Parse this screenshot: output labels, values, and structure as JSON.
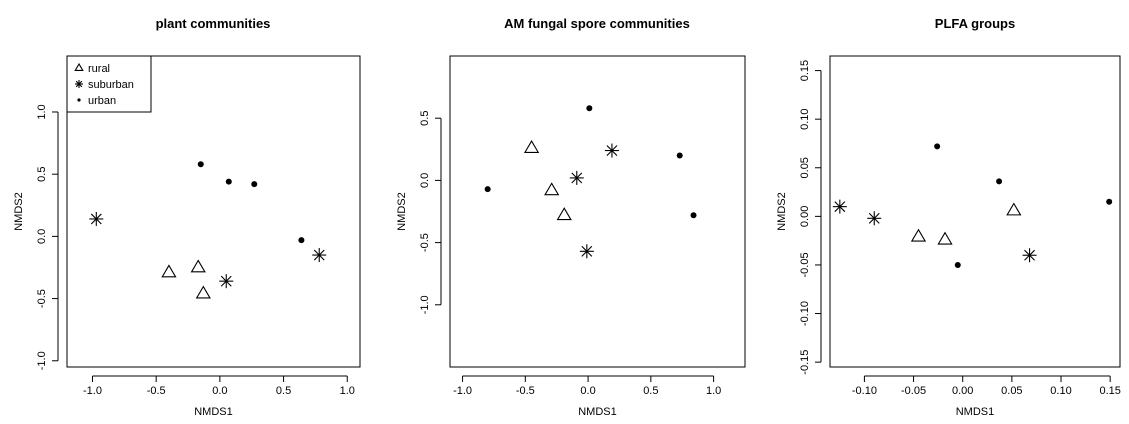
{
  "chart_data": [
    {
      "type": "scatter",
      "title": "plant communities",
      "xlabel": "NMDS1",
      "ylabel": "NMDS2",
      "xlim": [
        -1.2,
        1.1
      ],
      "ylim": [
        -1.05,
        1.45
      ],
      "xticks": [
        -1.0,
        -0.5,
        0.0,
        0.5,
        1.0
      ],
      "xtick_labels": [
        "-1.0",
        "-0.5",
        "0.0",
        "0.5",
        "1.0"
      ],
      "yticks": [
        -1.0,
        -0.5,
        0.0,
        0.5,
        1.0
      ],
      "ytick_labels": [
        "-1.0",
        "-0.5",
        "0.0",
        "0.5",
        "1.0"
      ],
      "grid": false,
      "legend": {
        "position": "top-left",
        "entries": [
          {
            "label": "rural",
            "marker": "triangle"
          },
          {
            "label": "suburban",
            "marker": "asterisk"
          },
          {
            "label": "urban",
            "marker": "dot"
          }
        ]
      },
      "series": [
        {
          "name": "rural",
          "marker": "triangle",
          "points": [
            [
              -0.4,
              -0.29
            ],
            [
              -0.17,
              -0.25
            ],
            [
              -0.13,
              -0.46
            ]
          ]
        },
        {
          "name": "suburban",
          "marker": "asterisk",
          "points": [
            [
              -0.97,
              0.14
            ],
            [
              0.05,
              -0.36
            ],
            [
              0.78,
              -0.15
            ]
          ]
        },
        {
          "name": "urban",
          "marker": "dot",
          "points": [
            [
              -0.15,
              0.58
            ],
            [
              0.07,
              0.44
            ],
            [
              0.27,
              0.42
            ],
            [
              0.64,
              -0.03
            ]
          ]
        }
      ]
    },
    {
      "type": "scatter",
      "title": "AM fungal spore communities",
      "xlabel": "NMDS1",
      "ylabel": "NMDS2",
      "xlim": [
        -1.1,
        1.25
      ],
      "ylim": [
        -1.5,
        1.0
      ],
      "xticks": [
        -1.0,
        -0.5,
        0.0,
        0.5,
        1.0
      ],
      "xtick_labels": [
        "-1.0",
        "-0.5",
        "0.0",
        "0.5",
        "1.0"
      ],
      "yticks": [
        -1.0,
        -0.5,
        0.0,
        0.5
      ],
      "ytick_labels": [
        "-1.0",
        "-0.5",
        "0.0",
        "0.5"
      ],
      "grid": false,
      "series": [
        {
          "name": "rural",
          "marker": "triangle",
          "points": [
            [
              -0.45,
              0.26
            ],
            [
              -0.29,
              -0.08
            ],
            [
              -0.19,
              -0.28
            ]
          ]
        },
        {
          "name": "suburban",
          "marker": "asterisk",
          "points": [
            [
              0.19,
              0.24
            ],
            [
              -0.09,
              0.02
            ],
            [
              -0.01,
              -0.57
            ]
          ]
        },
        {
          "name": "urban",
          "marker": "dot",
          "points": [
            [
              0.01,
              0.58
            ],
            [
              0.73,
              0.2
            ],
            [
              0.84,
              -0.28
            ],
            [
              -0.8,
              -0.07
            ]
          ]
        }
      ]
    },
    {
      "type": "scatter",
      "title": "PLFA groups",
      "xlabel": "NMDS1",
      "ylabel": "NMDS2",
      "xlim": [
        -0.135,
        0.16
      ],
      "ylim": [
        -0.155,
        0.165
      ],
      "xticks": [
        -0.1,
        -0.05,
        0.0,
        0.05,
        0.1,
        0.15
      ],
      "xtick_labels": [
        "-0.10",
        "-0.05",
        "0.00",
        "0.05",
        "0.10",
        "0.15"
      ],
      "yticks": [
        -0.15,
        -0.1,
        -0.05,
        0.0,
        0.05,
        0.1,
        0.15
      ],
      "ytick_labels": [
        "-0.15",
        "-0.10",
        "-0.05",
        "0.00",
        "0.05",
        "0.10",
        "0.15"
      ],
      "grid": false,
      "series": [
        {
          "name": "rural",
          "marker": "triangle",
          "points": [
            [
              -0.045,
              -0.021
            ],
            [
              -0.018,
              -0.024
            ],
            [
              0.052,
              0.006
            ]
          ]
        },
        {
          "name": "suburban",
          "marker": "asterisk",
          "points": [
            [
              -0.125,
              0.01
            ],
            [
              -0.09,
              -0.002
            ],
            [
              0.068,
              -0.04
            ]
          ]
        },
        {
          "name": "urban",
          "marker": "dot",
          "points": [
            [
              -0.026,
              0.072
            ],
            [
              0.037,
              0.036
            ],
            [
              -0.005,
              -0.05
            ],
            [
              0.149,
              0.015
            ]
          ]
        }
      ]
    }
  ]
}
